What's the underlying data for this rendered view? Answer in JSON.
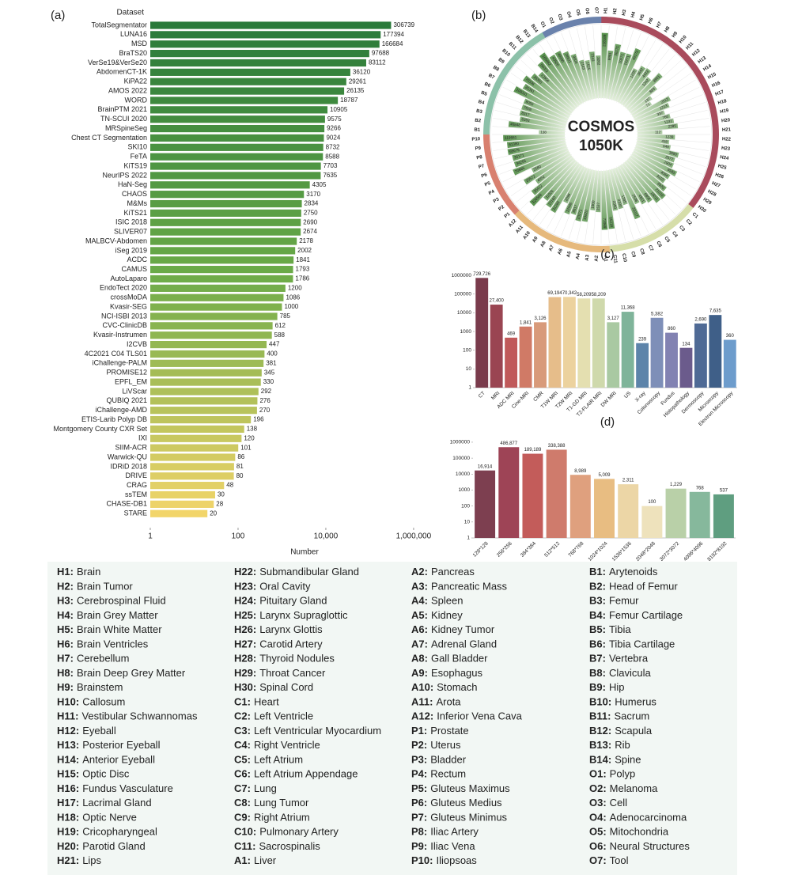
{
  "chart_data": [
    {
      "type": "hbar_log",
      "panel_label": "(a)",
      "y_header": "Dataset",
      "xlabel": "Number",
      "categories": [
        "TotalSegmentator",
        "LUNA16",
        "MSD",
        "BraTS20",
        "VerSe19&VerSe20",
        "AbdomenCT-1K",
        "KiPA22",
        "AMOS 2022",
        "WORD",
        "BrainPTM 2021",
        "TN-SCUI 2020",
        "MRSpineSeg",
        "Chest CT Segmentation",
        "SKI10",
        "FeTA",
        "KiTS19",
        "NeurIPS 2022",
        "HaN-Seg",
        "CHAOS",
        "M&Ms",
        "KiTS21",
        "ISIC 2018",
        "SLIVER07",
        "MALBCV-Abdomen",
        "iSeg 2019",
        "ACDC",
        "CAMUS",
        "AutoLaparo",
        "EndoTect 2020",
        "crossMoDA",
        "Kvasir-SEG",
        "NCI-ISBI 2013",
        "CVC-ClinicDB",
        "Kvasir-Instrumen",
        "I2CVB",
        "4C2021 C04 TLS01",
        "iChallenge-PALM",
        "PROMISE12",
        "EPFL_EM",
        "LiVScar",
        "QUBIQ 2021",
        "iChallenge-AMD",
        "ETIS-Larib Polyp DB",
        "Montgomery County CXR Set",
        "IXI",
        "SIIM-ACR",
        "Warwick-QU",
        "IDRiD 2018",
        "DRIVE",
        "CRAG",
        "ssTEM",
        "CHASE-DB1",
        "STARE"
      ],
      "values": [
        306739,
        177394,
        166684,
        97688,
        83112,
        36120,
        29261,
        26135,
        18787,
        10905,
        9575,
        9266,
        9024,
        8732,
        8588,
        7703,
        7635,
        4305,
        3170,
        2834,
        2750,
        2690,
        2674,
        2178,
        2002,
        1841,
        1793,
        1786,
        1200,
        1086,
        1000,
        785,
        612,
        588,
        447,
        400,
        381,
        345,
        330,
        292,
        276,
        270,
        196,
        138,
        120,
        101,
        86,
        81,
        80,
        48,
        30,
        28,
        20
      ],
      "color_stops": [
        "#2a7a3a",
        "#6aaa48",
        "#f2d56a"
      ],
      "log_x": true,
      "xlim": [
        1,
        2500000
      ],
      "xticks": [
        1,
        100,
        {
          "value": 10000,
          "label": "10,000"
        },
        {
          "value": 1000000,
          "label": "1,000,000"
        }
      ]
    },
    {
      "type": "radial_bar",
      "panel_label": "(b)",
      "center_title": "COSMOS",
      "center_subtitle": "1050K",
      "categories": [
        "H1",
        "H2",
        "H3",
        "H4",
        "H5",
        "H6",
        "H7",
        "H8",
        "H9",
        "H10",
        "H11",
        "H12",
        "H13",
        "H14",
        "H15",
        "H16",
        "H17",
        "H18",
        "H19",
        "H20",
        "H21",
        "H22",
        "H23",
        "H24",
        "H25",
        "H26",
        "H27",
        "H28",
        "H29",
        "H30",
        "C1",
        "C2",
        "C3",
        "C4",
        "C5",
        "C6",
        "C7",
        "C8",
        "C9",
        "C10",
        "C11",
        "A1",
        "A2",
        "A3",
        "A4",
        "A5",
        "A6",
        "A7",
        "A8",
        "A9",
        "A10",
        "A11",
        "A12",
        "P1",
        "P2",
        "P3",
        "P4",
        "P5",
        "P6",
        "P7",
        "P8",
        "P9",
        "P10",
        "B1",
        "B2",
        "B3",
        "B4",
        "B5",
        "B6",
        "B7",
        "B8",
        "B9",
        "B10",
        "B11",
        "B12",
        "B13",
        "B14",
        "O1",
        "O2",
        "O3",
        "O4",
        "O5",
        "O6",
        "O7"
      ],
      "values": [
        238189,
        8981,
        36171,
        10271,
        10271,
        46172,
        1225,
        3642,
        4433,
        1242,
        8951,
        883,
        137,
        71,
        2512,
        1213,
        337,
        760,
        1231,
        2285,
        112,
        1239,
        438,
        649,
        3890,
        2577,
        2904,
        9580,
        4084,
        3110,
        8920,
        21010,
        18011,
        6902,
        4821,
        2536,
        33217,
        1285,
        2100,
        2350,
        65218,
        72069,
        2537,
        1900,
        19820,
        23271,
        9017,
        12596,
        2096,
        31283,
        22160,
        11025,
        126568,
        25412,
        4052,
        25572,
        2580,
        70665,
        34255,
        35171,
        65675,
        61380,
        119581,
        138,
        46848,
        6393,
        8317,
        7928,
        8050,
        109331,
        31361,
        70336,
        28350,
        12556,
        56002,
        165862,
        43500,
        48990,
        24621,
        9604,
        2143,
        1625,
        7343,
        3262
      ],
      "group_colors": {
        "H": "#a94b5c",
        "C": "#d6dea9",
        "A": "#e6b97c",
        "P": "#d8806f",
        "B": "#8cc1a9",
        "O": "#6a82ac"
      },
      "bar_color": "#3d7f32",
      "log_r": true,
      "rlim": [
        1,
        1000000
      ]
    },
    {
      "type": "bar_log",
      "panel_label": "(c)",
      "categories": [
        "CT",
        "MRI",
        "ADC MRI",
        "Cine-MRI",
        "CMR",
        "T1W MRI",
        "T2W MRI",
        "T1-GD MRI",
        "T2-FLAIR MRI",
        "DW MRI",
        "US",
        "X-ray",
        "Colonoscopy",
        "Fundus",
        "Histopathology",
        "Dermoscopy",
        "Microscopy",
        "Electron Microscopy"
      ],
      "values": [
        729726,
        27400,
        469,
        1841,
        3126,
        69194,
        70342,
        58209,
        58209,
        3127,
        11368,
        239,
        5382,
        860,
        134,
        2690,
        7635,
        360
      ],
      "value_labels": [
        "729,726",
        "27,400",
        "469",
        "1,841",
        "3,126",
        "69,194",
        "70,342",
        "58,209",
        "58,209",
        "3,127",
        "11,368",
        "239",
        "5,382",
        "860",
        "134",
        "2,690",
        "7,635",
        "360"
      ],
      "colors": [
        "#7a3b4c",
        "#9a4552",
        "#c0595a",
        "#d07a66",
        "#d89a7a",
        "#e6bd8a",
        "#ecd29e",
        "#e4dfb0",
        "#cfd9ac",
        "#a9c9a2",
        "#7fb49a",
        "#5d84aa",
        "#7e8fb8",
        "#8282b2",
        "#6b5b8c",
        "#4f6a95",
        "#3f5f88",
        "#6d9ccc"
      ],
      "log_y": true,
      "ylim": [
        1,
        2200000
      ],
      "yticks": [
        1,
        10,
        100,
        1000,
        10000,
        100000,
        1000000
      ]
    },
    {
      "type": "bar_log",
      "panel_label": "(d)",
      "categories": [
        "128*128",
        "256*256",
        "384*384",
        "512*512",
        "768*768",
        "1024*1024",
        "1536*1536",
        "2048*2048",
        "3072*3072",
        "4096*4096",
        "8192*8192"
      ],
      "values": [
        16914,
        486877,
        189189,
        338388,
        8989,
        5009,
        2311,
        100,
        1229,
        768,
        537
      ],
      "value_labels": [
        "16,914",
        "486,877",
        "189,189",
        "338,388",
        "8,989",
        "5,009",
        "2,311",
        "100",
        "1,229",
        "768",
        "537"
      ],
      "colors": [
        "#7d3f50",
        "#9e4456",
        "#c35c5a",
        "#cf7b6c",
        "#dfa07e",
        "#e8bd82",
        "#ecd6a6",
        "#eee2bc",
        "#b9d0a8",
        "#86b89c",
        "#5f9e80"
      ],
      "log_y": true,
      "ylim": [
        1,
        1400000
      ],
      "yticks": [
        1,
        10,
        100,
        1000,
        10000,
        100000,
        1000000
      ]
    }
  ],
  "legend": {
    "entries": [
      {
        "code": "H1:",
        "name": "Brain"
      },
      {
        "code": "H2:",
        "name": "Brain Tumor"
      },
      {
        "code": "H3:",
        "name": "Cerebrospinal Fluid"
      },
      {
        "code": "H4:",
        "name": "Brain Grey Matter"
      },
      {
        "code": "H5:",
        "name": "Brain White Matter"
      },
      {
        "code": "H6:",
        "name": "Brain Ventricles"
      },
      {
        "code": "H7:",
        "name": "Cerebellum"
      },
      {
        "code": "H8:",
        "name": "Brain Deep Grey Matter"
      },
      {
        "code": "H9:",
        "name": "Brainstem"
      },
      {
        "code": "H10:",
        "name": "Callosum"
      },
      {
        "code": "H11:",
        "name": "Vestibular Schwannomas"
      },
      {
        "code": "H12:",
        "name": "Eyeball"
      },
      {
        "code": "H13:",
        "name": "Posterior Eyeball"
      },
      {
        "code": "H14:",
        "name": "Anterior Eyeball"
      },
      {
        "code": "H15:",
        "name": "Optic Disc"
      },
      {
        "code": "H16:",
        "name": "Fundus Vasculature"
      },
      {
        "code": "H17:",
        "name": "Lacrimal Gland"
      },
      {
        "code": "H18:",
        "name": "Optic Nerve"
      },
      {
        "code": "H19:",
        "name": "Cricopharyngeal"
      },
      {
        "code": "H20:",
        "name": "Parotid Gland"
      },
      {
        "code": "H21:",
        "name": "Lips"
      },
      {
        "code": "H22:",
        "name": "Submandibular Gland"
      },
      {
        "code": "H23:",
        "name": "Oral Cavity"
      },
      {
        "code": "H24:",
        "name": "Pituitary Gland"
      },
      {
        "code": "H25:",
        "name": "Larynx Supraglottic"
      },
      {
        "code": "H26:",
        "name": "Larynx Glottis"
      },
      {
        "code": "H27:",
        "name": "Carotid Artery"
      },
      {
        "code": "H28:",
        "name": "Thyroid Nodules"
      },
      {
        "code": "H29:",
        "name": "Throat Cancer"
      },
      {
        "code": "H30:",
        "name": "Spinal Cord"
      },
      {
        "code": "C1:",
        "name": "Heart"
      },
      {
        "code": "C2:",
        "name": "Left Ventricle"
      },
      {
        "code": "C3:",
        "name": "Left Ventricular Myocardium"
      },
      {
        "code": "C4:",
        "name": "Right Ventricle"
      },
      {
        "code": "C5:",
        "name": "Left Atrium"
      },
      {
        "code": "C6:",
        "name": "Left Atrium Appendage"
      },
      {
        "code": "C7:",
        "name": "Lung"
      },
      {
        "code": "C8:",
        "name": "Lung Tumor"
      },
      {
        "code": "C9:",
        "name": "Right Atrium"
      },
      {
        "code": "C10:",
        "name": "Pulmonary Artery"
      },
      {
        "code": "C11:",
        "name": "Sacrospinalis"
      },
      {
        "code": "A1:",
        "name": "Liver"
      },
      {
        "code": "A2:",
        "name": "Pancreas"
      },
      {
        "code": "A3:",
        "name": "Pancreatic Mass"
      },
      {
        "code": "A4:",
        "name": "Spleen"
      },
      {
        "code": "A5:",
        "name": "Kidney"
      },
      {
        "code": "A6:",
        "name": "Kidney Tumor"
      },
      {
        "code": "A7:",
        "name": "Adrenal Gland"
      },
      {
        "code": "A8:",
        "name": "Gall Bladder"
      },
      {
        "code": "A9:",
        "name": "Esophagus"
      },
      {
        "code": "A10:",
        "name": "Stomach"
      },
      {
        "code": "A11:",
        "name": "Arota"
      },
      {
        "code": "A12:",
        "name": "Inferior Vena Cava"
      },
      {
        "code": "P1:",
        "name": "Prostate"
      },
      {
        "code": "P2:",
        "name": "Uterus"
      },
      {
        "code": "P3:",
        "name": "Bladder"
      },
      {
        "code": "P4:",
        "name": "Rectum"
      },
      {
        "code": "P5:",
        "name": "Gluteus Maximus"
      },
      {
        "code": "P6:",
        "name": "Gluteus Medius"
      },
      {
        "code": "P7:",
        "name": "Gluteus Minimus"
      },
      {
        "code": "P8:",
        "name": "Iliac Artery"
      },
      {
        "code": "P9:",
        "name": "Iliac Vena"
      },
      {
        "code": "P10:",
        "name": "Iliopsoas"
      },
      {
        "code": "B1:",
        "name": "Arytenoids"
      },
      {
        "code": "B2:",
        "name": "Head of Femur"
      },
      {
        "code": "B3:",
        "name": "Femur"
      },
      {
        "code": "B4:",
        "name": "Femur Cartilage"
      },
      {
        "code": "B5:",
        "name": "Tibia"
      },
      {
        "code": "B6:",
        "name": "Tibia Cartilage"
      },
      {
        "code": "B7:",
        "name": "Vertebra"
      },
      {
        "code": "B8:",
        "name": "Clavicula"
      },
      {
        "code": "B9:",
        "name": "Hip"
      },
      {
        "code": "B10:",
        "name": "Humerus"
      },
      {
        "code": "B11:",
        "name": "Sacrum"
      },
      {
        "code": "B12:",
        "name": "Scapula"
      },
      {
        "code": "B13:",
        "name": "Rib"
      },
      {
        "code": "B14:",
        "name": "Spine"
      },
      {
        "code": "O1:",
        "name": "Polyp"
      },
      {
        "code": "O2:",
        "name": "Melanoma"
      },
      {
        "code": "O3:",
        "name": "Cell"
      },
      {
        "code": "O4:",
        "name": "Adenocarcinoma"
      },
      {
        "code": "O5:",
        "name": "Mitochondria"
      },
      {
        "code": "O6:",
        "name": "Neural Structures"
      },
      {
        "code": "O7:",
        "name": "Tool"
      }
    ]
  }
}
